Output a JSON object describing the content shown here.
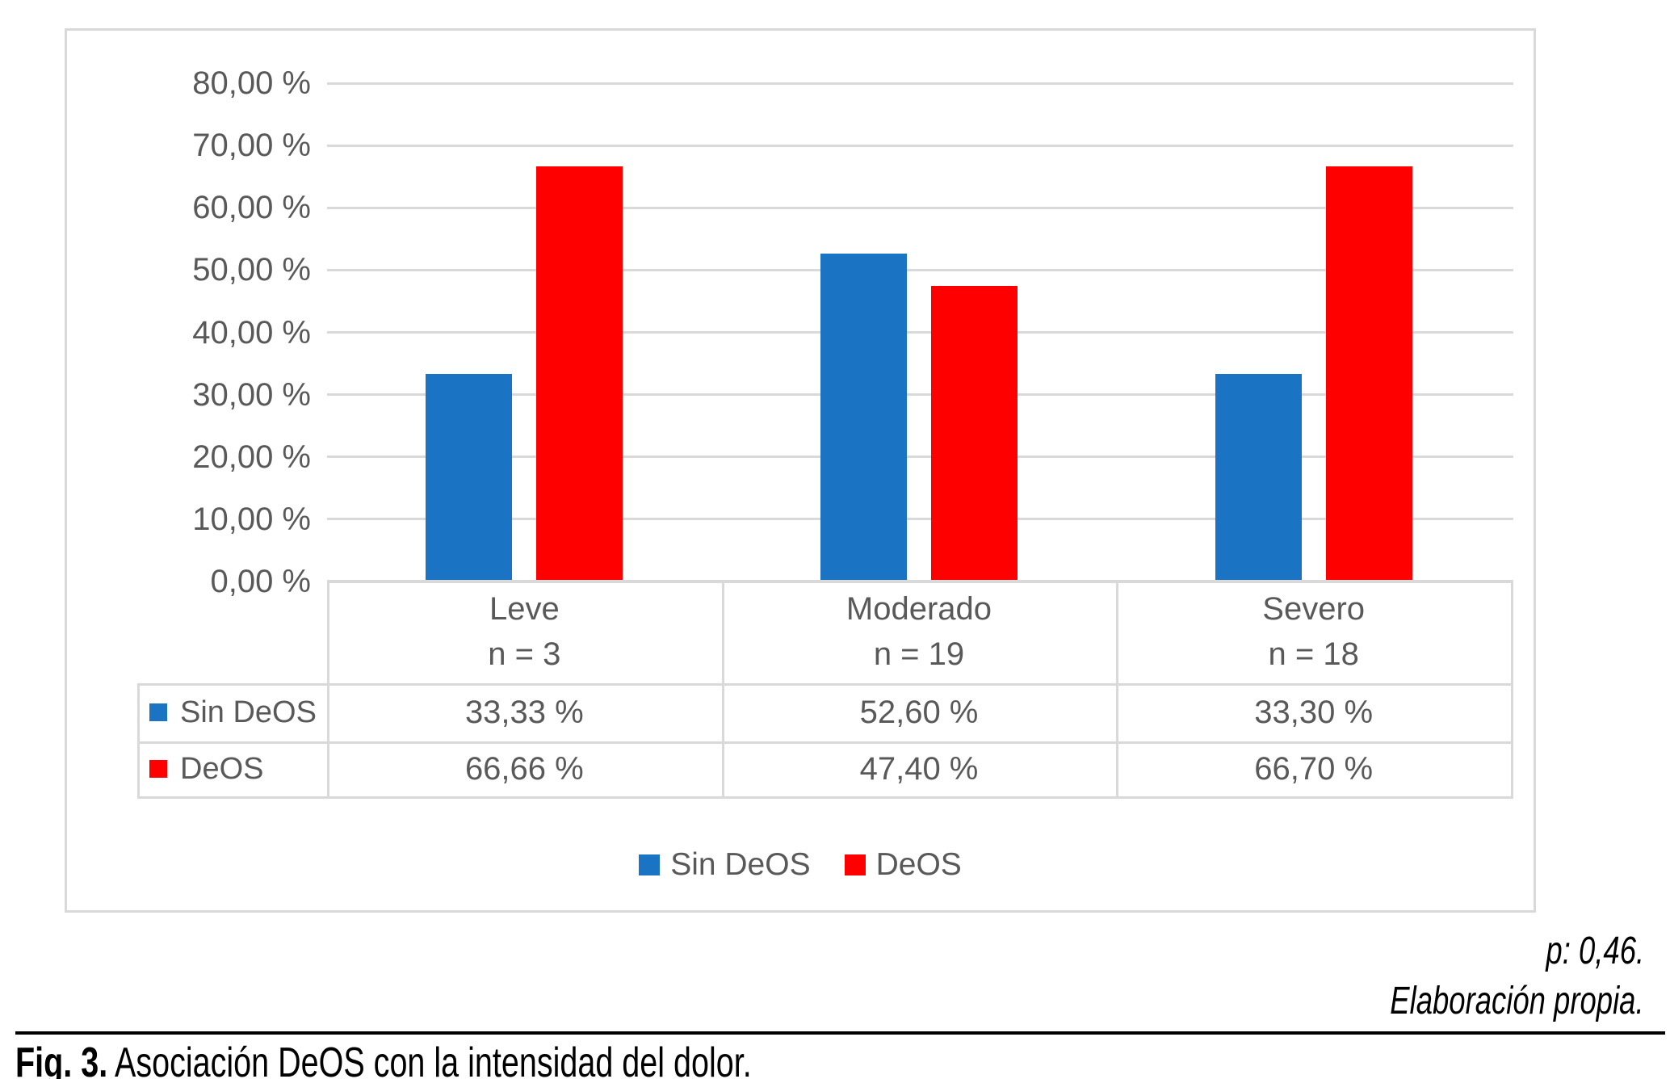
{
  "chart_data": {
    "type": "bar",
    "title": "",
    "categories": [
      "Leve",
      "Moderado",
      "Severo"
    ],
    "category_sublabels": [
      "n = 3",
      "n = 19",
      "n = 18"
    ],
    "series": [
      {
        "name": "Sin DeOS",
        "color": "#1B73C4",
        "values": [
          33.33,
          52.6,
          33.3
        ],
        "value_labels": [
          "33,33 %",
          "52,60 %",
          "33,30 %"
        ]
      },
      {
        "name": "DeOS",
        "color": "#FF0000",
        "values": [
          66.66,
          47.4,
          66.7
        ],
        "value_labels": [
          "66,66 %",
          "47,40 %",
          "66,70 %"
        ]
      }
    ],
    "y_axis": {
      "min": 0,
      "max": 80,
      "step": 10,
      "tick_labels": [
        "0,00 %",
        "10,00 %",
        "20,00 %",
        "30,00 %",
        "40,00 %",
        "50,00 %",
        "60,00 %",
        "70,00 %",
        "80,00 %"
      ]
    },
    "grid": true,
    "legend": [
      "Sin DeOS",
      "DeOS"
    ],
    "legend_position": "bottom",
    "data_table_shown": true
  },
  "notes": {
    "p_value": "p: 0,46.",
    "source": "Elaboración propia."
  },
  "caption": {
    "prefix": "Fig. 3.",
    "text": " Asociación DeOS con la intensidad del dolor."
  },
  "colors": {
    "sin_deos_blue": "#1B73C4",
    "deos_red": "#FF0000",
    "grid_gray": "#D9D9D9",
    "text_gray": "#595959",
    "caption_black": "#000000"
  }
}
